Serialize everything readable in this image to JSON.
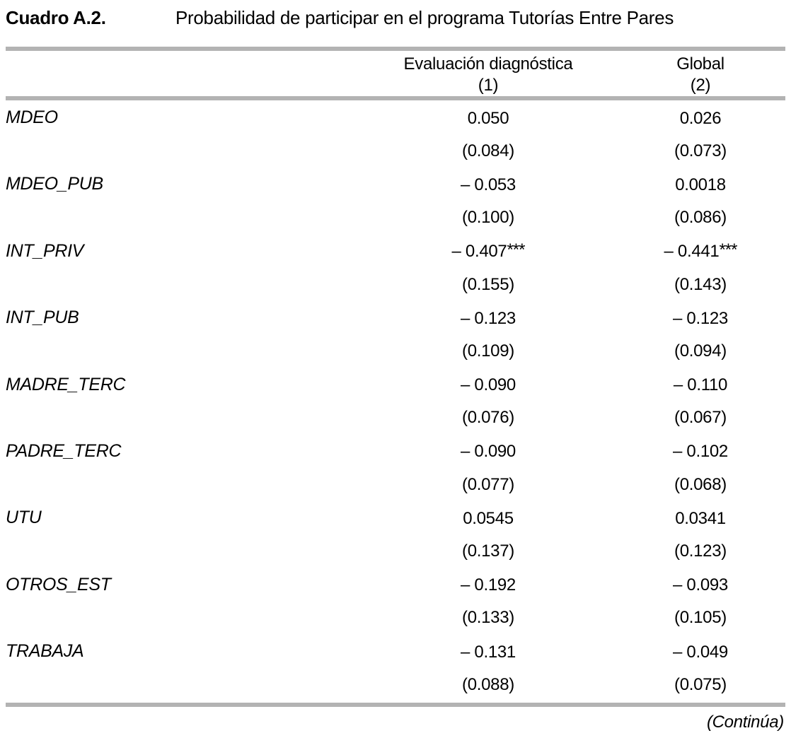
{
  "page": {
    "title_label": "Cuadro A.2.",
    "title_text": "Probabilidad de participar en el programa Tutorías Entre Pares",
    "continuation_note": "(Continúa)"
  },
  "table": {
    "columns": [
      {
        "name": "Evaluación diagnóstica",
        "number": "(1)"
      },
      {
        "name": "Global",
        "number": "(2)"
      }
    ],
    "rows": [
      {
        "variable": "MDEO",
        "col1": "0.050",
        "col1_stars": "",
        "col1_se": "(0.084)",
        "col2": "0.026",
        "col2_stars": "",
        "col2_se": "(0.073)"
      },
      {
        "variable": "MDEO_PUB",
        "col1": "– 0.053",
        "col1_stars": "",
        "col1_se": "(0.100)",
        "col2": "0.0018",
        "col2_stars": "",
        "col2_se": "(0.086)"
      },
      {
        "variable": "INT_PRIV",
        "col1": "– 0.407",
        "col1_stars": "***",
        "col1_se": "(0.155)",
        "col2": "– 0.441",
        "col2_stars": "***",
        "col2_se": "(0.143)"
      },
      {
        "variable": "INT_PUB",
        "col1": "– 0.123",
        "col1_stars": "",
        "col1_se": "(0.109)",
        "col2": "– 0.123",
        "col2_stars": "",
        "col2_se": "(0.094)"
      },
      {
        "variable": "MADRE_TERC",
        "col1": "– 0.090",
        "col1_stars": "",
        "col1_se": "(0.076)",
        "col2": "– 0.110",
        "col2_stars": "",
        "col2_se": "(0.067)"
      },
      {
        "variable": "PADRE_TERC",
        "col1": "– 0.090",
        "col1_stars": "",
        "col1_se": "(0.077)",
        "col2": "– 0.102",
        "col2_stars": "",
        "col2_se": "(0.068)"
      },
      {
        "variable": "UTU",
        "col1": "0.0545",
        "col1_stars": "",
        "col1_se": "(0.137)",
        "col2": "0.0341",
        "col2_stars": "",
        "col2_se": "(0.123)"
      },
      {
        "variable": "OTROS_EST",
        "col1": "– 0.192",
        "col1_stars": "",
        "col1_se": "(0.133)",
        "col2": "– 0.093",
        "col2_stars": "",
        "col2_se": "(0.105)"
      },
      {
        "variable": "TRABAJA",
        "col1": "– 0.131",
        "col1_stars": "",
        "col1_se": "(0.088)",
        "col2": "– 0.049",
        "col2_stars": "",
        "col2_se": "(0.075)"
      }
    ]
  },
  "colors": {
    "rule_gray": "#b3b3b3",
    "text": "#000000"
  }
}
